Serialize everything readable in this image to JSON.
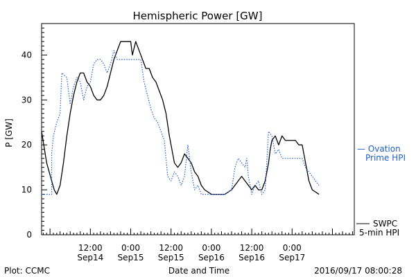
{
  "chart_data": {
    "type": "line",
    "title": "Hemispheric Power [GW]",
    "xlabel": "Date and Time",
    "ylabel": "P [GW]",
    "ylim": [
      0,
      47
    ],
    "yticks": [
      0,
      10,
      20,
      30,
      40
    ],
    "xlim": [
      "2016-09-13T21:30",
      "2016-09-17T18:30"
    ],
    "xticks": [
      {
        "time": "2016-09-14T12:00",
        "line1": "12:00",
        "line2": "Sep14"
      },
      {
        "time": "2016-09-15T00:00",
        "line1": "0:00",
        "line2": "Sep15"
      },
      {
        "time": "2016-09-15T12:00",
        "line1": "12:00",
        "line2": "Sep15"
      },
      {
        "time": "2016-09-16T00:00",
        "line1": "0:00",
        "line2": "Sep16"
      },
      {
        "time": "2016-09-16T12:00",
        "line1": "12:00",
        "line2": "Sep16"
      },
      {
        "time": "2016-09-17T00:00",
        "line1": "0:00",
        "line2": "Sep17"
      }
    ],
    "grid": false,
    "legend": "right",
    "series": [
      {
        "name": "SWPC 5-min HPI",
        "color": "#000000",
        "style": "solid",
        "points": [
          [
            "2016-09-13T21:30",
            23
          ],
          [
            "2016-09-13T23:00",
            16
          ],
          [
            "2016-09-14T00:30",
            12
          ],
          [
            "2016-09-14T01:15",
            10
          ],
          [
            "2016-09-14T02:00",
            9
          ],
          [
            "2016-09-14T03:00",
            11
          ],
          [
            "2016-09-14T04:00",
            16
          ],
          [
            "2016-09-14T05:00",
            22
          ],
          [
            "2016-09-14T06:00",
            27
          ],
          [
            "2016-09-14T07:00",
            31
          ],
          [
            "2016-09-14T08:00",
            34
          ],
          [
            "2016-09-14T09:00",
            36
          ],
          [
            "2016-09-14T10:00",
            36
          ],
          [
            "2016-09-14T11:00",
            34
          ],
          [
            "2016-09-14T12:00",
            33
          ],
          [
            "2016-09-14T13:00",
            31
          ],
          [
            "2016-09-14T14:00",
            30
          ],
          [
            "2016-09-14T15:00",
            30
          ],
          [
            "2016-09-14T16:00",
            31
          ],
          [
            "2016-09-14T17:00",
            33
          ],
          [
            "2016-09-14T18:00",
            36
          ],
          [
            "2016-09-14T19:00",
            39
          ],
          [
            "2016-09-14T20:00",
            41
          ],
          [
            "2016-09-14T21:00",
            43
          ],
          [
            "2016-09-15T00:00",
            43
          ],
          [
            "2016-09-15T00:30",
            40
          ],
          [
            "2016-09-15T01:30",
            43
          ],
          [
            "2016-09-15T02:30",
            41
          ],
          [
            "2016-09-15T03:30",
            39
          ],
          [
            "2016-09-15T04:30",
            37
          ],
          [
            "2016-09-15T05:30",
            37
          ],
          [
            "2016-09-15T06:30",
            35
          ],
          [
            "2016-09-15T07:30",
            34
          ],
          [
            "2016-09-15T08:30",
            32
          ],
          [
            "2016-09-15T09:30",
            30
          ],
          [
            "2016-09-15T10:30",
            27
          ],
          [
            "2016-09-15T11:30",
            22
          ],
          [
            "2016-09-15T12:30",
            18
          ],
          [
            "2016-09-15T13:00",
            16
          ],
          [
            "2016-09-15T14:00",
            15
          ],
          [
            "2016-09-15T15:00",
            16
          ],
          [
            "2016-09-15T16:00",
            18
          ],
          [
            "2016-09-15T17:00",
            17
          ],
          [
            "2016-09-15T18:00",
            16
          ],
          [
            "2016-09-15T19:00",
            14
          ],
          [
            "2016-09-15T20:00",
            13
          ],
          [
            "2016-09-15T21:00",
            11
          ],
          [
            "2016-09-15T22:00",
            10
          ],
          [
            "2016-09-16T00:00",
            9
          ],
          [
            "2016-09-16T02:00",
            9
          ],
          [
            "2016-09-16T04:00",
            9
          ],
          [
            "2016-09-16T06:00",
            10
          ],
          [
            "2016-09-16T08:00",
            12
          ],
          [
            "2016-09-16T09:00",
            13
          ],
          [
            "2016-09-16T10:00",
            12
          ],
          [
            "2016-09-16T11:00",
            11
          ],
          [
            "2016-09-16T12:00",
            10
          ],
          [
            "2016-09-16T13:00",
            11
          ],
          [
            "2016-09-16T14:00",
            10
          ],
          [
            "2016-09-16T15:00",
            10
          ],
          [
            "2016-09-16T15:30",
            11
          ],
          [
            "2016-09-16T16:00",
            12
          ],
          [
            "2016-09-16T16:30",
            14
          ],
          [
            "2016-09-16T17:00",
            16
          ],
          [
            "2016-09-16T17:30",
            19
          ],
          [
            "2016-09-16T18:00",
            21
          ],
          [
            "2016-09-16T19:00",
            22
          ],
          [
            "2016-09-16T20:00",
            20
          ],
          [
            "2016-09-16T21:00",
            22
          ],
          [
            "2016-09-16T22:00",
            21
          ],
          [
            "2016-09-17T00:00",
            21
          ],
          [
            "2016-09-17T01:00",
            21
          ],
          [
            "2016-09-17T02:00",
            20
          ],
          [
            "2016-09-17T03:00",
            20
          ],
          [
            "2016-09-17T04:00",
            16
          ],
          [
            "2016-09-17T05:00",
            12
          ],
          [
            "2016-09-17T06:00",
            10
          ],
          [
            "2016-09-17T08:00",
            9
          ]
        ]
      },
      {
        "name": "Ovation Prime HPI",
        "color": "#1f5fd0",
        "style": "dotted",
        "points": [
          [
            "2016-09-13T21:30",
            9
          ],
          [
            "2016-09-14T00:30",
            9
          ],
          [
            "2016-09-14T00:30",
            18
          ],
          [
            "2016-09-14T01:00",
            22
          ],
          [
            "2016-09-14T02:00",
            25
          ],
          [
            "2016-09-14T03:00",
            27
          ],
          [
            "2016-09-14T03:30",
            36
          ],
          [
            "2016-09-14T05:00",
            35
          ],
          [
            "2016-09-14T06:00",
            29
          ],
          [
            "2016-09-14T07:00",
            33
          ],
          [
            "2016-09-14T08:00",
            35
          ],
          [
            "2016-09-14T09:00",
            34
          ],
          [
            "2016-09-14T10:00",
            30
          ],
          [
            "2016-09-14T11:00",
            33
          ],
          [
            "2016-09-14T12:00",
            34
          ],
          [
            "2016-09-14T13:00",
            38
          ],
          [
            "2016-09-14T14:00",
            39
          ],
          [
            "2016-09-14T15:00",
            39
          ],
          [
            "2016-09-14T16:00",
            38
          ],
          [
            "2016-09-14T17:00",
            36
          ],
          [
            "2016-09-14T18:00",
            38
          ],
          [
            "2016-09-14T19:00",
            41
          ],
          [
            "2016-09-14T20:00",
            39
          ],
          [
            "2016-09-14T21:00",
            39
          ],
          [
            "2016-09-15T03:00",
            39
          ],
          [
            "2016-09-15T04:00",
            34
          ],
          [
            "2016-09-15T05:00",
            31
          ],
          [
            "2016-09-15T06:00",
            28
          ],
          [
            "2016-09-15T07:00",
            26
          ],
          [
            "2016-09-15T08:00",
            25
          ],
          [
            "2016-09-15T09:00",
            23
          ],
          [
            "2016-09-15T10:00",
            21
          ],
          [
            "2016-09-15T11:00",
            13
          ],
          [
            "2016-09-15T12:00",
            12
          ],
          [
            "2016-09-15T13:00",
            14
          ],
          [
            "2016-09-15T14:00",
            13
          ],
          [
            "2016-09-15T15:00",
            11
          ],
          [
            "2016-09-15T16:00",
            13
          ],
          [
            "2016-09-15T17:00",
            20
          ],
          [
            "2016-09-15T18:00",
            14
          ],
          [
            "2016-09-15T19:00",
            10
          ],
          [
            "2016-09-15T20:00",
            11
          ],
          [
            "2016-09-15T21:00",
            9
          ],
          [
            "2016-09-16T00:00",
            9
          ],
          [
            "2016-09-16T04:00",
            9
          ],
          [
            "2016-09-16T06:00",
            10
          ],
          [
            "2016-09-16T07:00",
            15
          ],
          [
            "2016-09-16T08:00",
            17
          ],
          [
            "2016-09-16T09:00",
            16
          ],
          [
            "2016-09-16T10:00",
            15
          ],
          [
            "2016-09-16T10:30",
            17
          ],
          [
            "2016-09-16T11:00",
            13
          ],
          [
            "2016-09-16T12:00",
            9
          ],
          [
            "2016-09-16T13:00",
            11
          ],
          [
            "2016-09-16T14:00",
            12
          ],
          [
            "2016-09-16T15:00",
            9
          ],
          [
            "2016-09-16T16:00",
            10
          ],
          [
            "2016-09-16T17:00",
            23
          ],
          [
            "2016-09-16T18:00",
            22
          ],
          [
            "2016-09-16T19:00",
            18
          ],
          [
            "2016-09-16T20:00",
            19
          ],
          [
            "2016-09-16T21:00",
            17
          ],
          [
            "2016-09-17T03:00",
            17
          ],
          [
            "2016-09-17T04:00",
            15
          ],
          [
            "2016-09-17T06:00",
            13
          ],
          [
            "2016-09-17T08:00",
            11
          ]
        ]
      }
    ],
    "legend_entries": [
      {
        "line1": "— Ovation",
        "line2": "Prime HPI",
        "color": "#1f5fd0"
      },
      {
        "line1": "SWPC",
        "line2": "5-min HPI",
        "color": "#000000"
      }
    ]
  },
  "footer": {
    "left": "Plot: CCMC",
    "center": "Date and Time",
    "right": "2016/09/17 08:00:28"
  }
}
